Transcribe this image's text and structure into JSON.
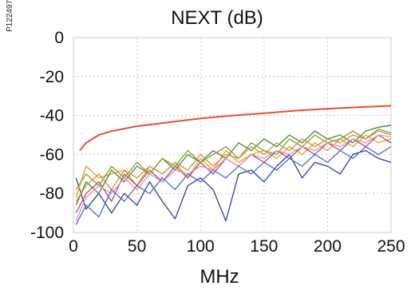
{
  "figure_id": "P122497",
  "chart_data": {
    "type": "line",
    "title": "NEXT (dB)",
    "xlabel": "MHz",
    "ylabel": "",
    "xlim": [
      0,
      250
    ],
    "ylim": [
      -100,
      0
    ],
    "x_ticks": [
      0,
      50,
      100,
      150,
      200,
      250
    ],
    "y_ticks": [
      0,
      -20,
      -40,
      -60,
      -80,
      -100
    ],
    "x_tick_labels": [
      "0",
      "50",
      "100",
      "150",
      "200",
      "250"
    ],
    "y_tick_labels": [
      "0",
      "-20",
      "-40",
      "-60",
      "-80",
      "-100"
    ],
    "grid": true,
    "limit": {
      "color": "#e0523a",
      "x": [
        5,
        10,
        20,
        30,
        50,
        75,
        100,
        125,
        150,
        175,
        200,
        225,
        250
      ],
      "y": [
        -58,
        -54,
        -50,
        -48,
        -45.5,
        -43.5,
        -41.5,
        -40,
        -38.8,
        -37.5,
        -36.5,
        -35.7,
        -35
      ]
    },
    "series": [
      {
        "color": "#2f3f9a",
        "x": [
          2,
          10,
          20,
          30,
          40,
          50,
          60,
          70,
          80,
          90,
          100,
          110,
          120,
          130,
          140,
          150,
          160,
          170,
          180,
          190,
          200,
          210,
          220,
          230,
          240,
          250
        ],
        "y": [
          -72,
          -88,
          -80,
          -90,
          -80,
          -86,
          -74,
          -84,
          -93,
          -76,
          -72,
          -78,
          -94,
          -70,
          -68,
          -74,
          -66,
          -60,
          -72,
          -64,
          -66,
          -70,
          -60,
          -58,
          -62,
          -64
        ]
      },
      {
        "color": "#e8a020",
        "x": [
          2,
          10,
          20,
          30,
          40,
          50,
          60,
          70,
          80,
          90,
          100,
          110,
          120,
          130,
          140,
          150,
          160,
          170,
          180,
          190,
          200,
          210,
          220,
          230,
          240,
          250
        ],
        "y": [
          -82,
          -66,
          -72,
          -70,
          -68,
          -76,
          -66,
          -70,
          -64,
          -72,
          -62,
          -68,
          -58,
          -64,
          -60,
          -58,
          -62,
          -56,
          -60,
          -54,
          -58,
          -52,
          -56,
          -50,
          -54,
          -52
        ]
      },
      {
        "color": "#3f8a3a",
        "x": [
          2,
          10,
          20,
          30,
          40,
          50,
          60,
          70,
          80,
          90,
          100,
          110,
          120,
          130,
          140,
          150,
          160,
          170,
          180,
          190,
          200,
          210,
          220,
          230,
          240,
          250
        ],
        "y": [
          -86,
          -74,
          -80,
          -68,
          -74,
          -66,
          -70,
          -62,
          -68,
          -60,
          -64,
          -58,
          -62,
          -54,
          -58,
          -52,
          -56,
          -50,
          -54,
          -48,
          -52,
          -50,
          -54,
          -48,
          -46,
          -45
        ]
      },
      {
        "color": "#b04a7a",
        "x": [
          2,
          10,
          20,
          30,
          40,
          50,
          60,
          70,
          80,
          90,
          100,
          110,
          120,
          130,
          140,
          150,
          160,
          170,
          180,
          190,
          200,
          210,
          220,
          230,
          240,
          250
        ],
        "y": [
          -90,
          -80,
          -74,
          -84,
          -70,
          -76,
          -68,
          -74,
          -66,
          -72,
          -64,
          -70,
          -62,
          -66,
          -60,
          -64,
          -58,
          -62,
          -56,
          -60,
          -54,
          -58,
          -52,
          -56,
          -50,
          -54
        ]
      },
      {
        "color": "#8a9a2a",
        "x": [
          2,
          10,
          20,
          30,
          40,
          50,
          60,
          70,
          80,
          90,
          100,
          110,
          120,
          130,
          140,
          150,
          160,
          170,
          180,
          190,
          200,
          210,
          220,
          230,
          240,
          250
        ],
        "y": [
          -78,
          -70,
          -76,
          -66,
          -72,
          -64,
          -70,
          -62,
          -66,
          -58,
          -64,
          -60,
          -56,
          -62,
          -54,
          -58,
          -60,
          -52,
          -56,
          -50,
          -54,
          -52,
          -48,
          -52,
          -47,
          -49
        ]
      },
      {
        "color": "#e88ab8",
        "x": [
          2,
          10,
          20,
          30,
          40,
          50,
          60,
          70,
          80,
          90,
          100,
          110,
          120,
          130,
          140,
          150,
          160,
          170,
          180,
          190,
          200,
          210,
          220,
          230,
          240,
          250
        ],
        "y": [
          -94,
          -82,
          -76,
          -80,
          -72,
          -78,
          -70,
          -74,
          -68,
          -70,
          -66,
          -68,
          -62,
          -66,
          -60,
          -62,
          -58,
          -60,
          -56,
          -58,
          -54,
          -56,
          -52,
          -54,
          -50,
          -51
        ]
      },
      {
        "color": "#c8963a",
        "x": [
          2,
          10,
          20,
          30,
          40,
          50,
          60,
          70,
          80,
          90,
          100,
          110,
          120,
          130,
          140,
          150,
          160,
          170,
          180,
          190,
          200,
          210,
          220,
          230,
          240,
          250
        ],
        "y": [
          -84,
          -76,
          -70,
          -78,
          -68,
          -72,
          -66,
          -70,
          -64,
          -68,
          -60,
          -66,
          -60,
          -62,
          -56,
          -60,
          -54,
          -58,
          -52,
          -56,
          -52,
          -54,
          -50,
          -52,
          -48,
          -50
        ]
      },
      {
        "color": "#4a6ad0",
        "x": [
          2,
          10,
          20,
          30,
          40,
          50,
          60,
          70,
          80,
          90,
          100,
          110,
          120,
          130,
          140,
          150,
          160,
          170,
          180,
          190,
          200,
          210,
          220,
          230,
          240,
          250
        ],
        "y": [
          -96,
          -86,
          -92,
          -78,
          -84,
          -76,
          -80,
          -72,
          -78,
          -70,
          -74,
          -68,
          -72,
          -66,
          -70,
          -64,
          -68,
          -62,
          -66,
          -60,
          -64,
          -58,
          -62,
          -56,
          -60,
          -56
        ]
      }
    ]
  }
}
